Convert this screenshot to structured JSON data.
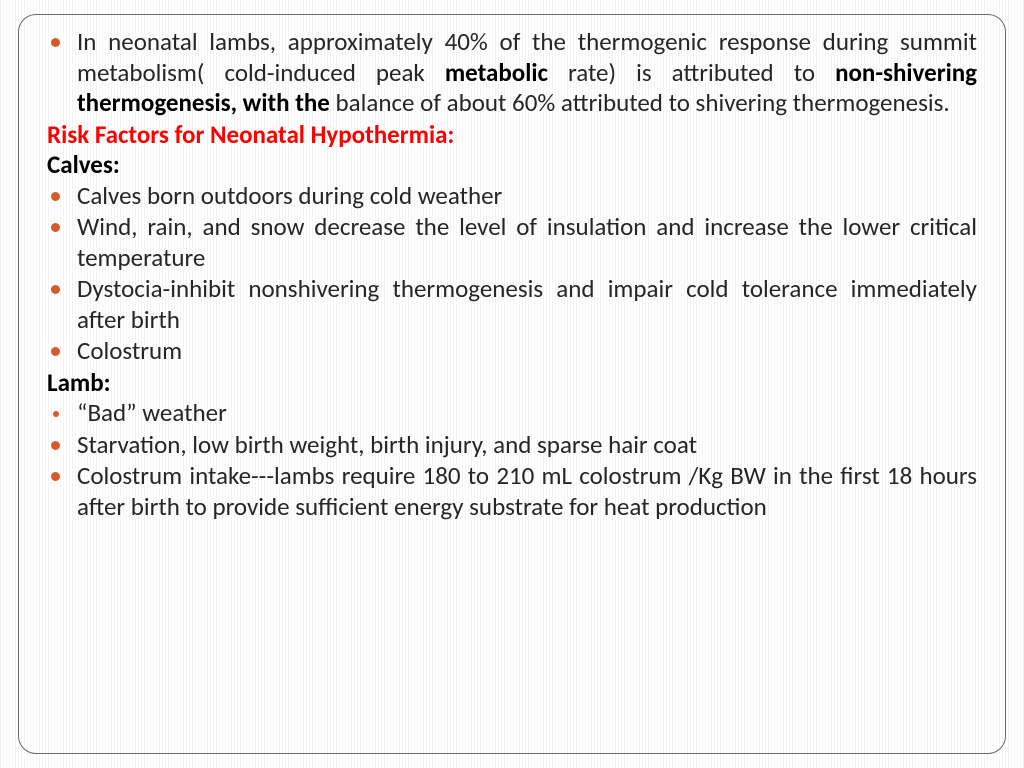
{
  "slide": {
    "bullet_color": "#d55a2c",
    "text_color": "#262626",
    "heading_red_color": "#ff0000",
    "font_size_pt": 20,
    "intro": {
      "pre": "In neonatal lambs, approximately 40% of the thermogenic response during summit metabolism( cold-induced peak ",
      "bold1": "metabolic",
      "mid1": " rate) is attributed to ",
      "bold2": "non-shivering thermogenesis, with the ",
      "post": "balance of about 60% attributed to shivering thermogenesis."
    },
    "risk_heading": "Risk Factors for Neonatal Hypothermia:",
    "calves_heading": "Calves:",
    "calves": {
      "b1": "Calves born outdoors during cold weather",
      "b2": "Wind, rain, and snow decrease the level of insulation and increase the lower critical temperature",
      "b3": "Dystocia-inhibit nonshivering thermogenesis and impair cold tolerance immediately after birth",
      "b4": "Colostrum"
    },
    "lamb_heading": "Lamb:",
    "lamb": {
      "b1": "“Bad” weather",
      "b2": "Starvation, low birth weight, birth injury, and sparse hair coat",
      "b3": "Colostrum intake---lambs require 180 to 210 mL colostrum /Kg BW in the first 18 hours after birth to provide sufficient energy substrate for heat production"
    }
  }
}
